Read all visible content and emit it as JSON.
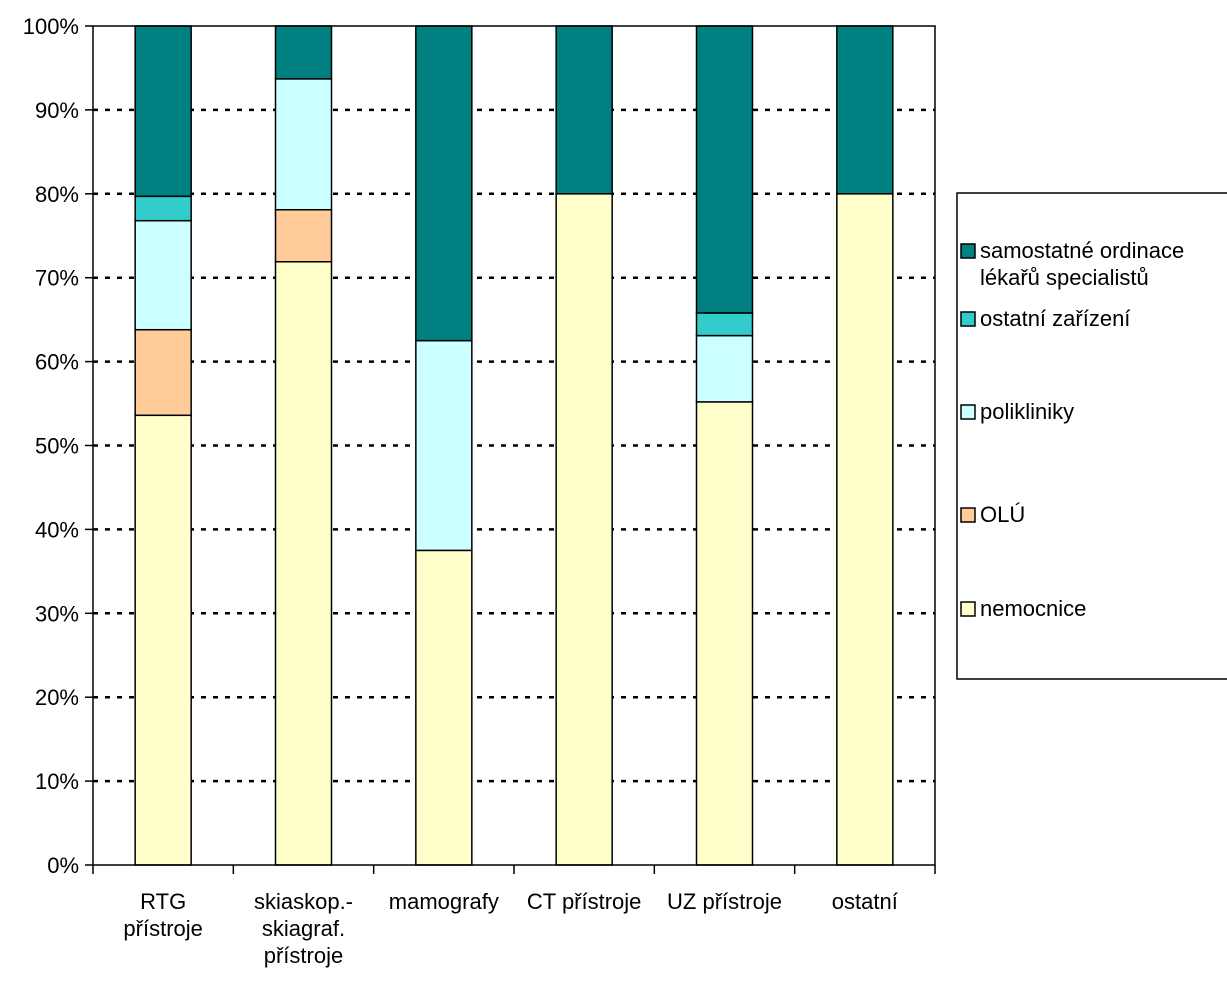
{
  "chart_data": {
    "type": "bar",
    "stacked": true,
    "percent": true,
    "categories": [
      [
        "RTG",
        "přístroje"
      ],
      [
        "skiaskop.-",
        "skiagraf.",
        "přístroje"
      ],
      [
        "mamografy"
      ],
      [
        "CT přístroje"
      ],
      [
        "UZ přístroje"
      ],
      [
        "ostatní"
      ]
    ],
    "series": [
      {
        "name": "nemocnice",
        "color": "#FFFFCC",
        "values": [
          53.6,
          71.9,
          37.5,
          80,
          55.2,
          80
        ]
      },
      {
        "name": "OLÚ",
        "color": "#FFCC99",
        "values": [
          10.2,
          6.2,
          0,
          0,
          0,
          0
        ]
      },
      {
        "name": "polikliniky",
        "color": "#CCFFFF",
        "values": [
          13.0,
          15.6,
          25.0,
          0,
          7.9,
          0
        ]
      },
      {
        "name": "ostatní zařízení",
        "color": "#33CCCC",
        "values": [
          2.9,
          0,
          0,
          0,
          2.7,
          0
        ]
      },
      {
        "name": "samostatné ordinace lékařů specialistů",
        "color": "#008080",
        "values": [
          20.3,
          6.3,
          37.5,
          20,
          34.2,
          20
        ]
      }
    ],
    "legend_items": [
      {
        "lines": [
          "samostatné ordinace",
          "lékařů specialistů"
        ],
        "color": "#008080"
      },
      {
        "lines": [
          "ostatní zařízení"
        ],
        "color": "#33CCCC"
      },
      {
        "lines": [
          "polikliniky"
        ],
        "color": "#CCFFFF"
      },
      {
        "lines": [
          "OLÚ"
        ],
        "color": "#FFCC99"
      },
      {
        "lines": [
          "nemocnice"
        ],
        "color": "#FFFFCC"
      }
    ],
    "y_ticks": [
      "0%",
      "10%",
      "20%",
      "30%",
      "40%",
      "50%",
      "60%",
      "70%",
      "80%",
      "90%",
      "100%"
    ],
    "ylim": [
      0,
      100
    ],
    "grid": "horizontal-dotted",
    "legend_position": "right"
  }
}
